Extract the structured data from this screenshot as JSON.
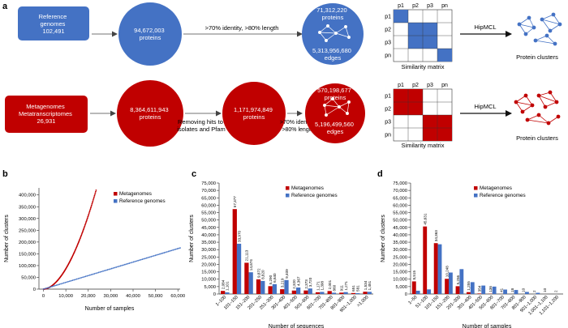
{
  "panel_a": {
    "letter": "a",
    "reference": {
      "box_label": [
        "Reference",
        "genomes",
        "102,491"
      ],
      "proteins_circle": [
        "94,672,003",
        "proteins"
      ],
      "arrow_label": ">70% identity, >80% length",
      "network_proteins": [
        "71,312,220",
        "proteins"
      ],
      "network_edges": [
        "5,313,956,680",
        "edges"
      ]
    },
    "metagenome": {
      "box_label": [
        "Metagenomes",
        "Metatranscriptomes",
        "26,931"
      ],
      "proteins_circle": [
        "8,364,611,943",
        "proteins"
      ],
      "filter_label": [
        "Removing hits to",
        "isolates and Pfam"
      ],
      "filtered_circle": [
        "1,171,974,849",
        "proteins"
      ],
      "arrow_label": [
        ">70% identity",
        ">80% length"
      ],
      "network_proteins": [
        "570,198,677",
        "proteins"
      ],
      "network_edges": [
        "5,196,499,560",
        "edges"
      ]
    },
    "matrix": {
      "col_labels": [
        "p1",
        "p2",
        "p3",
        "pn"
      ],
      "row_labels": [
        "p1",
        "p2",
        "p3",
        "pn"
      ],
      "caption": "Similarity matrix",
      "blue_cells": [
        [
          0,
          0
        ],
        [
          1,
          1
        ],
        [
          2,
          1
        ],
        [
          1,
          2
        ],
        [
          2,
          2
        ],
        [
          3,
          3
        ]
      ],
      "red_cells": [
        [
          0,
          0
        ],
        [
          1,
          0
        ],
        [
          0,
          1
        ],
        [
          1,
          1
        ],
        [
          2,
          2
        ],
        [
          3,
          2
        ],
        [
          2,
          3
        ],
        [
          3,
          3
        ]
      ]
    },
    "hipmcl_label": "HipMCL",
    "clusters_caption": "Protein clusters",
    "colors": {
      "blue": "#4472c4",
      "red": "#c00000"
    }
  },
  "panel_b": {
    "letter": "b",
    "chart_data": {
      "type": "scatter",
      "xlabel": "Number of samples",
      "ylabel": "Number of clusters",
      "xticks": [
        0,
        10000,
        20000,
        30000,
        40000,
        50000,
        60000
      ],
      "xtick_labels": [
        "0",
        "10,000",
        "20,000",
        "30,000",
        "40,000",
        "50,000",
        "60,000"
      ],
      "yticks": [
        0,
        50000,
        100000,
        150000,
        200000,
        250000,
        300000,
        350000,
        400000
      ],
      "ytick_labels": [
        "0",
        "50,000",
        "100,000",
        "150,000",
        "200,000",
        "250,000",
        "300,000",
        "350,000",
        "400,000"
      ],
      "xlim": [
        -2000,
        61000
      ],
      "ylim": [
        0,
        430000
      ],
      "legend_position": "top-right",
      "series": [
        {
          "name": "Metagenomes",
          "color": "#c00000",
          "x_max": 23500,
          "y_max": 420000,
          "shape": "convex"
        },
        {
          "name": "Reference genomes",
          "color": "#4472c4",
          "x_max": 61000,
          "y_max": 175000,
          "shape": "linear"
        }
      ]
    }
  },
  "panel_c": {
    "letter": "c",
    "chart_data": {
      "type": "bar",
      "xlabel": "Number of sequences",
      "ylabel": "Number of clusters",
      "ylim": [
        0,
        75000
      ],
      "yticks": [
        0,
        5000,
        10000,
        15000,
        20000,
        25000,
        30000,
        35000,
        40000,
        45000,
        50000,
        55000,
        60000,
        65000,
        70000,
        75000
      ],
      "ytick_labels": [
        "0",
        "5,000",
        "10,000",
        "15,000",
        "20,000",
        "25,000",
        "30,000",
        "35,000",
        "40,000",
        "45,000",
        "50,000",
        "55,000",
        "60,000",
        "65,000",
        "70,000",
        "75,000"
      ],
      "legend_position": "top-right",
      "categories": [
        "1–100",
        "101–150",
        "151–200",
        "201–250",
        "251–300",
        "301–400",
        "401–500",
        "501–600",
        "601–700",
        "701–800",
        "801–900",
        "901–1,000",
        ">1,000"
      ],
      "series": [
        {
          "name": "Metagenomes",
          "color": "#c00000",
          "values": [
            2084,
            57377,
            21113,
            9872,
            5290,
            3219,
            2320,
            2373,
            1171,
            2001,
            911,
            651,
            1534
          ],
          "value_labels": [
            "2,084",
            "57,377",
            "21,113",
            "9,872",
            "5,290",
            "3,219",
            "2,320",
            "2,373",
            "1,171",
            "2,001",
            "911",
            "651",
            "1,534"
          ]
        },
        {
          "name": "Reference genomes",
          "color": "#4472c4",
          "values": [
            1101,
            33970,
            14674,
            8820,
            6640,
            9409,
            4367,
            3720,
            1398,
            860,
            1271,
            581,
            1451
          ],
          "value_labels": [
            "1,101",
            "33,970",
            "14,674",
            "8,820",
            "6,640",
            "9,409",
            "4,367",
            "3,720",
            "1,398",
            "860",
            "1,271",
            "581",
            "1,451"
          ]
        }
      ]
    }
  },
  "panel_d": {
    "letter": "d",
    "chart_data": {
      "type": "bar",
      "xlabel": "Number of samples",
      "ylabel": "Number of clusters",
      "ylim": [
        0,
        75000
      ],
      "yticks": [
        0,
        5000,
        10000,
        15000,
        20000,
        25000,
        30000,
        35000,
        40000,
        45000,
        50000,
        55000,
        60000,
        65000,
        70000,
        75000
      ],
      "ytick_labels": [
        "0",
        "5,000",
        "10,000",
        "15,000",
        "20,000",
        "25,000",
        "30,000",
        "35,000",
        "40,000",
        "45,000",
        "50,000",
        "55,000",
        "60,000",
        "65,000",
        "70,000",
        "75,000"
      ],
      "legend_position": "top-right",
      "categories": [
        "1–50",
        "51–100",
        "101–150",
        "151–200",
        "201–300",
        "301–400",
        "401–500",
        "501–600",
        "601–700",
        "701–800",
        "801–900",
        "901–1,000",
        "1,001–1,100",
        "1,101–1,200"
      ],
      "series": [
        {
          "name": "Metagenomes",
          "color": "#c00000",
          "values": [
            8515,
            45631,
            34363,
            10248,
            5256,
            1255,
            354,
            136,
            41,
            18,
            10,
            2,
            10,
            2
          ],
          "value_labels": [
            "8,515",
            "45,631",
            "34,363",
            "10,248",
            "5,256",
            "1,255",
            "354",
            "136",
            "41",
            "18",
            "10",
            "2",
            "10",
            "2"
          ]
        },
        {
          "name": "Reference genomes",
          "color": "#4472c4",
          "values": [
            2200,
            3100,
            33600,
            14500,
            16800,
            8000,
            5700,
            5000,
            3000,
            2700,
            1400,
            800,
            0,
            0
          ]
        }
      ]
    }
  }
}
